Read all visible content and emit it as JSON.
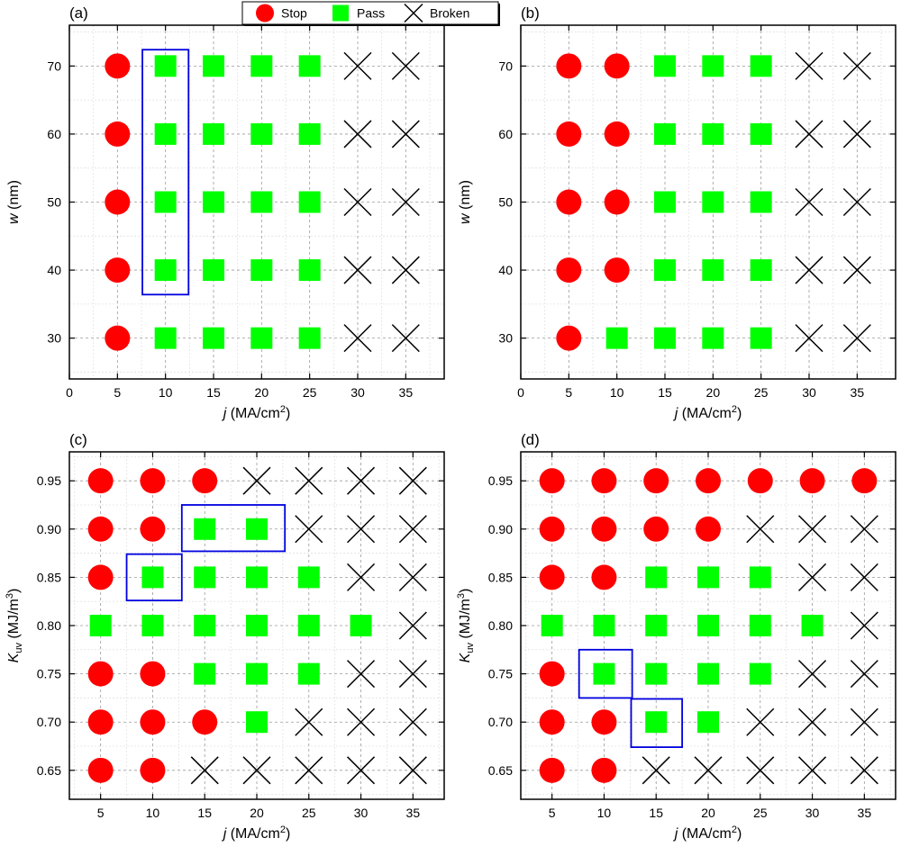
{
  "legend": {
    "placement": "top-center",
    "entries": [
      {
        "name": "Stop",
        "marker": "circle",
        "color": "#ff0000"
      },
      {
        "name": "Pass",
        "marker": "square",
        "color": "#00ff00"
      },
      {
        "name": "Broken",
        "marker": "cross",
        "color": "#000000"
      }
    ]
  },
  "chart_data": [
    {
      "panel": "(a)",
      "type": "scatter",
      "xlabel_symbol": "j",
      "xlabel_unit": " (MA/cm",
      "xlabel_sup": "2",
      "xlabel_close": ")",
      "ylabel_symbol": "w",
      "ylabel_unit": " (nm)",
      "xlim": [
        0,
        39
      ],
      "ylim": [
        24,
        76
      ],
      "xticks": [
        0,
        5,
        10,
        15,
        20,
        25,
        30,
        35
      ],
      "yticks": [
        30,
        40,
        50,
        60,
        70
      ],
      "grid": true,
      "series": [
        {
          "name": "Stop",
          "points": [
            [
              5,
              30
            ],
            [
              5,
              40
            ],
            [
              5,
              50
            ],
            [
              5,
              60
            ],
            [
              5,
              70
            ]
          ]
        },
        {
          "name": "Pass",
          "points": [
            [
              10,
              30
            ],
            [
              15,
              30
            ],
            [
              20,
              30
            ],
            [
              25,
              30
            ],
            [
              10,
              40
            ],
            [
              15,
              40
            ],
            [
              20,
              40
            ],
            [
              25,
              40
            ],
            [
              10,
              50
            ],
            [
              15,
              50
            ],
            [
              20,
              50
            ],
            [
              25,
              50
            ],
            [
              10,
              60
            ],
            [
              15,
              60
            ],
            [
              20,
              60
            ],
            [
              25,
              60
            ],
            [
              10,
              70
            ],
            [
              15,
              70
            ],
            [
              20,
              70
            ],
            [
              25,
              70
            ]
          ]
        },
        {
          "name": "Broken",
          "points": [
            [
              30,
              30
            ],
            [
              35,
              30
            ],
            [
              30,
              40
            ],
            [
              35,
              40
            ],
            [
              30,
              50
            ],
            [
              35,
              50
            ],
            [
              30,
              60
            ],
            [
              35,
              60
            ],
            [
              30,
              70
            ],
            [
              35,
              70
            ]
          ]
        }
      ],
      "highlight_boxes": [
        {
          "x": [
            7.6,
            12.4
          ],
          "y": [
            36.4,
            72.4
          ]
        }
      ]
    },
    {
      "panel": "(b)",
      "type": "scatter",
      "xlabel_symbol": "j",
      "xlabel_unit": " (MA/cm",
      "xlabel_sup": "2",
      "xlabel_close": ")",
      "ylabel_symbol": "w",
      "ylabel_unit": " (nm)",
      "xlim": [
        0,
        39
      ],
      "ylim": [
        24,
        76
      ],
      "xticks": [
        0,
        5,
        10,
        15,
        20,
        25,
        30,
        35
      ],
      "yticks": [
        30,
        40,
        50,
        60,
        70
      ],
      "grid": true,
      "series": [
        {
          "name": "Stop",
          "points": [
            [
              5,
              30
            ],
            [
              5,
              40
            ],
            [
              5,
              50
            ],
            [
              5,
              60
            ],
            [
              5,
              70
            ],
            [
              10,
              40
            ],
            [
              10,
              50
            ],
            [
              10,
              60
            ],
            [
              10,
              70
            ]
          ]
        },
        {
          "name": "Pass",
          "points": [
            [
              10,
              30
            ],
            [
              15,
              30
            ],
            [
              20,
              30
            ],
            [
              25,
              30
            ],
            [
              15,
              40
            ],
            [
              20,
              40
            ],
            [
              25,
              40
            ],
            [
              15,
              50
            ],
            [
              20,
              50
            ],
            [
              25,
              50
            ],
            [
              15,
              60
            ],
            [
              20,
              60
            ],
            [
              25,
              60
            ],
            [
              15,
              70
            ],
            [
              20,
              70
            ],
            [
              25,
              70
            ]
          ]
        },
        {
          "name": "Broken",
          "points": [
            [
              30,
              30
            ],
            [
              35,
              30
            ],
            [
              30,
              40
            ],
            [
              35,
              40
            ],
            [
              30,
              50
            ],
            [
              35,
              50
            ],
            [
              30,
              60
            ],
            [
              35,
              60
            ],
            [
              30,
              70
            ],
            [
              35,
              70
            ]
          ]
        }
      ],
      "highlight_boxes": []
    },
    {
      "panel": "(c)",
      "type": "scatter",
      "xlabel_symbol": "j",
      "xlabel_unit": " (MA/cm",
      "xlabel_sup": "2",
      "xlabel_close": ")",
      "ylabel_symbol": "K",
      "ylabel_sub": "uv",
      "ylabel_unit": " (MJ/m",
      "ylabel_sup": "3",
      "ylabel_close": ")",
      "xlim": [
        2,
        38
      ],
      "ylim": [
        0.62,
        0.98
      ],
      "xticks": [
        5,
        10,
        15,
        20,
        25,
        30,
        35
      ],
      "yticks": [
        0.65,
        0.7,
        0.75,
        0.8,
        0.85,
        0.9,
        0.95
      ],
      "ytick_labels": [
        "0.65",
        "0.70",
        "0.75",
        "0.80",
        "0.85",
        "0.90",
        "0.95"
      ],
      "grid": true,
      "series": [
        {
          "name": "Stop",
          "points": [
            [
              5,
              0.95
            ],
            [
              10,
              0.95
            ],
            [
              15,
              0.95
            ],
            [
              5,
              0.9
            ],
            [
              10,
              0.9
            ],
            [
              5,
              0.85
            ],
            [
              5,
              0.75
            ],
            [
              10,
              0.75
            ],
            [
              5,
              0.7
            ],
            [
              10,
              0.7
            ],
            [
              15,
              0.7
            ],
            [
              5,
              0.65
            ],
            [
              10,
              0.65
            ]
          ]
        },
        {
          "name": "Pass",
          "points": [
            [
              15,
              0.9
            ],
            [
              20,
              0.9
            ],
            [
              10,
              0.85
            ],
            [
              15,
              0.85
            ],
            [
              20,
              0.85
            ],
            [
              25,
              0.85
            ],
            [
              5,
              0.8
            ],
            [
              10,
              0.8
            ],
            [
              15,
              0.8
            ],
            [
              20,
              0.8
            ],
            [
              25,
              0.8
            ],
            [
              30,
              0.8
            ],
            [
              15,
              0.75
            ],
            [
              20,
              0.75
            ],
            [
              25,
              0.75
            ],
            [
              20,
              0.7
            ]
          ]
        },
        {
          "name": "Broken",
          "points": [
            [
              20,
              0.95
            ],
            [
              25,
              0.95
            ],
            [
              30,
              0.95
            ],
            [
              35,
              0.95
            ],
            [
              25,
              0.9
            ],
            [
              30,
              0.9
            ],
            [
              35,
              0.9
            ],
            [
              30,
              0.85
            ],
            [
              35,
              0.85
            ],
            [
              35,
              0.8
            ],
            [
              30,
              0.75
            ],
            [
              35,
              0.75
            ],
            [
              25,
              0.7
            ],
            [
              30,
              0.7
            ],
            [
              35,
              0.7
            ],
            [
              15,
              0.65
            ],
            [
              20,
              0.65
            ],
            [
              25,
              0.65
            ],
            [
              30,
              0.65
            ],
            [
              35,
              0.65
            ]
          ]
        }
      ],
      "highlight_boxes": [
        {
          "x": [
            7.5,
            12.8
          ],
          "y": [
            0.826,
            0.874
          ]
        },
        {
          "x": [
            12.8,
            22.7
          ],
          "y": [
            0.877,
            0.925
          ]
        }
      ]
    },
    {
      "panel": "(d)",
      "type": "scatter",
      "xlabel_symbol": "j",
      "xlabel_unit": " (MA/cm",
      "xlabel_sup": "2",
      "xlabel_close": ")",
      "ylabel_symbol": "K",
      "ylabel_sub": "uv",
      "ylabel_unit": " (MJ/m",
      "ylabel_sup": "3",
      "ylabel_close": ")",
      "xlim": [
        2,
        38
      ],
      "ylim": [
        0.62,
        0.98
      ],
      "xticks": [
        5,
        10,
        15,
        20,
        25,
        30,
        35
      ],
      "yticks": [
        0.65,
        0.7,
        0.75,
        0.8,
        0.85,
        0.9,
        0.95
      ],
      "ytick_labels": [
        "0.65",
        "0.70",
        "0.75",
        "0.80",
        "0.85",
        "0.90",
        "0.95"
      ],
      "grid": true,
      "series": [
        {
          "name": "Stop",
          "points": [
            [
              5,
              0.95
            ],
            [
              10,
              0.95
            ],
            [
              15,
              0.95
            ],
            [
              20,
              0.95
            ],
            [
              25,
              0.95
            ],
            [
              30,
              0.95
            ],
            [
              35,
              0.95
            ],
            [
              5,
              0.9
            ],
            [
              10,
              0.9
            ],
            [
              15,
              0.9
            ],
            [
              20,
              0.9
            ],
            [
              5,
              0.85
            ],
            [
              10,
              0.85
            ],
            [
              5,
              0.75
            ],
            [
              5,
              0.7
            ],
            [
              10,
              0.7
            ],
            [
              5,
              0.65
            ],
            [
              10,
              0.65
            ]
          ]
        },
        {
          "name": "Pass",
          "points": [
            [
              15,
              0.85
            ],
            [
              20,
              0.85
            ],
            [
              25,
              0.85
            ],
            [
              5,
              0.8
            ],
            [
              10,
              0.8
            ],
            [
              15,
              0.8
            ],
            [
              20,
              0.8
            ],
            [
              25,
              0.8
            ],
            [
              30,
              0.8
            ],
            [
              10,
              0.75
            ],
            [
              15,
              0.75
            ],
            [
              20,
              0.75
            ],
            [
              25,
              0.75
            ],
            [
              15,
              0.7
            ],
            [
              20,
              0.7
            ]
          ]
        },
        {
          "name": "Broken",
          "points": [
            [
              25,
              0.9
            ],
            [
              30,
              0.9
            ],
            [
              35,
              0.9
            ],
            [
              30,
              0.85
            ],
            [
              35,
              0.85
            ],
            [
              35,
              0.8
            ],
            [
              30,
              0.75
            ],
            [
              35,
              0.75
            ],
            [
              25,
              0.7
            ],
            [
              30,
              0.7
            ],
            [
              35,
              0.7
            ],
            [
              15,
              0.65
            ],
            [
              20,
              0.65
            ],
            [
              25,
              0.65
            ],
            [
              30,
              0.65
            ],
            [
              35,
              0.65
            ]
          ]
        }
      ],
      "highlight_boxes": [
        {
          "x": [
            7.6,
            12.7
          ],
          "y": [
            0.725,
            0.775
          ]
        },
        {
          "x": [
            12.6,
            17.5
          ],
          "y": [
            0.674,
            0.724
          ]
        }
      ]
    }
  ]
}
